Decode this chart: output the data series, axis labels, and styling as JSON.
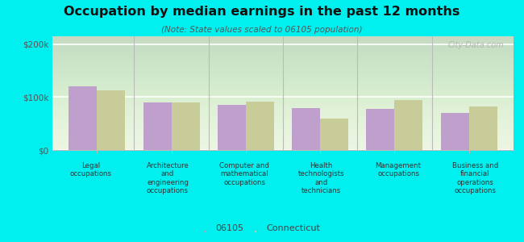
{
  "title": "Occupation by median earnings in the past 12 months",
  "subtitle": "(Note: State values scaled to 06105 population)",
  "categories": [
    "Legal\noccupations",
    "Architecture\nand\nengineering\noccupations",
    "Computer and\nmathematical\noccupations",
    "Health\ntechnologists\nand\ntechnicians",
    "Management\noccupations",
    "Business and\nfinancial\noperations\noccupations"
  ],
  "values_06105": [
    120000,
    90000,
    85000,
    80000,
    78000,
    70000
  ],
  "values_ct": [
    113000,
    90000,
    92000,
    60000,
    95000,
    82000
  ],
  "color_06105": "#bf9fcc",
  "color_ct": "#c8cc99",
  "background_color": "#00efef",
  "ylabel_ticks": [
    0,
    100000,
    200000
  ],
  "ylabel_labels": [
    "$0",
    "$100k",
    "$200k"
  ],
  "ylim": [
    0,
    215000
  ],
  "bar_width": 0.38,
  "legend_06105": "06105",
  "legend_ct": "Connecticut",
  "watermark": "City-Data.com"
}
